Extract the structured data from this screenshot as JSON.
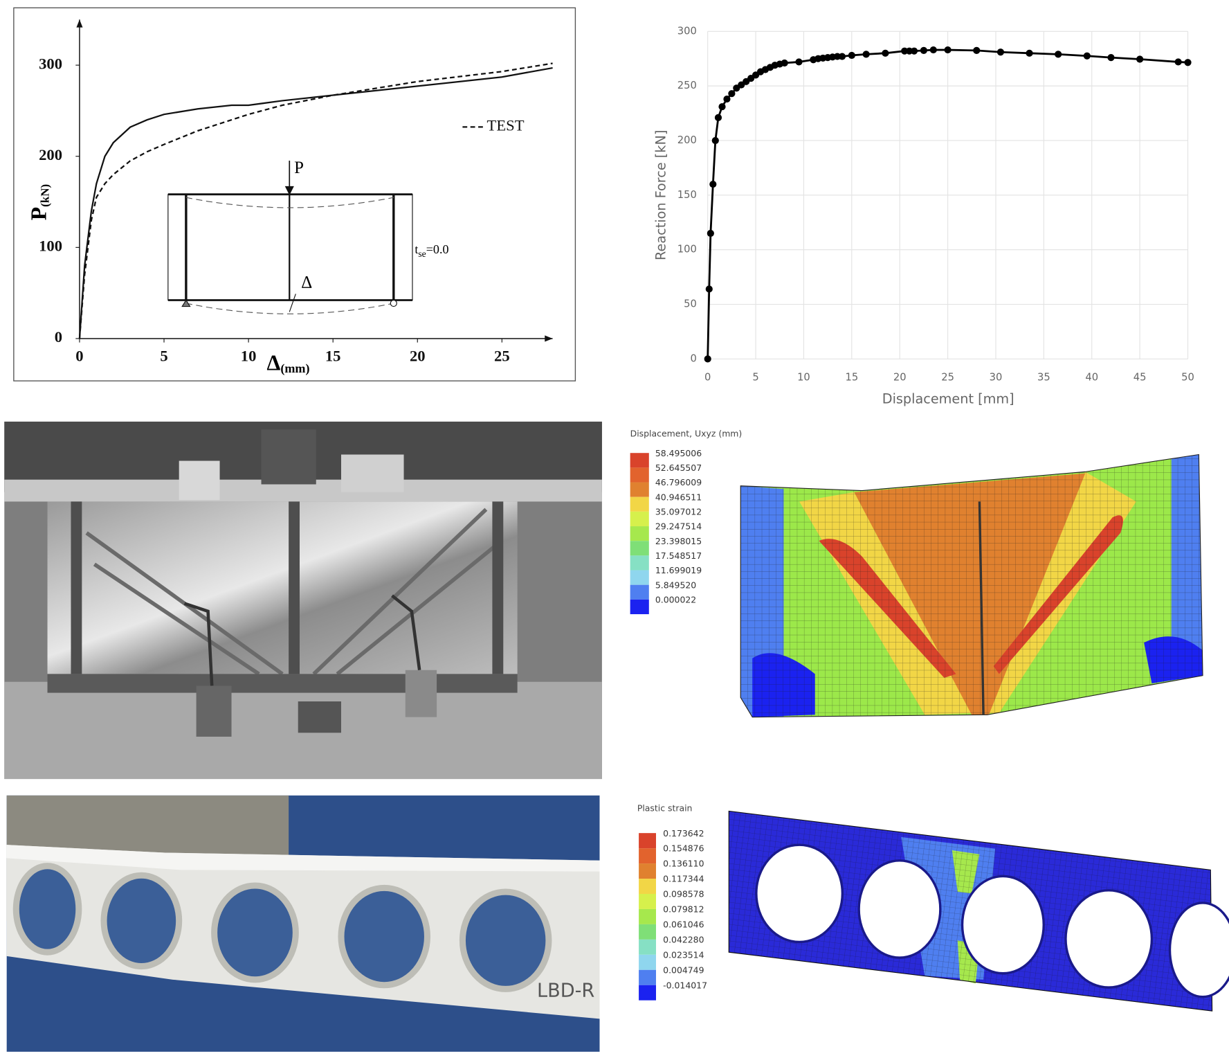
{
  "chart_data": [
    {
      "type": "line",
      "xlabel": {
        "main": "Δ",
        "sub": "(mm)"
      },
      "ylabel": {
        "main": "P",
        "sub": "(kN)"
      },
      "annotations": {
        "load": "P",
        "deflection": "Δ",
        "thickness": {
          "main": "t",
          "sub": "se",
          "rest": "=0.0"
        }
      },
      "x": [
        0,
        0.3,
        0.7,
        1,
        1.5,
        2,
        3,
        4,
        5,
        7,
        9,
        10,
        12,
        15,
        20,
        25,
        28
      ],
      "series": [
        {
          "style": "solid",
          "color": "#111111",
          "values": [
            0,
            80,
            140,
            170,
            200,
            215,
            232,
            240,
            246,
            252,
            256,
            256,
            261,
            267,
            277,
            287,
            297
          ]
        },
        {
          "name": "TEST",
          "style": "dashed",
          "color": "#111111",
          "values": [
            0,
            70,
            130,
            155,
            170,
            180,
            195,
            205,
            213,
            228,
            240,
            246,
            256,
            267,
            282,
            293,
            302
          ]
        }
      ],
      "xlim": [
        0,
        28
      ],
      "ylim": [
        0,
        350
      ],
      "xticks": [
        0,
        5,
        10,
        15,
        20,
        25
      ],
      "yticks": [
        0,
        100,
        200,
        300
      ],
      "grid": false
    },
    {
      "type": "line",
      "xlabel": "Displacement [mm]",
      "ylabel": "Reaction Force [kN]",
      "x": [
        0,
        0.15,
        0.3,
        0.55,
        0.8,
        1.1,
        1.5,
        2,
        2.5,
        3,
        3.5,
        4,
        4.5,
        5,
        5.5,
        6,
        6.5,
        7,
        7.5,
        8,
        9.5,
        11,
        11.5,
        12,
        12.5,
        13,
        13.5,
        14,
        15,
        16.5,
        18.5,
        20.5,
        21,
        21.5,
        22.5,
        23.5,
        25,
        28,
        30.5,
        33.5,
        36.5,
        39.5,
        42,
        45,
        49,
        50
      ],
      "series": [
        {
          "color": "#000000",
          "markers": true,
          "values": [
            0,
            64,
            115,
            160,
            200,
            221,
            231,
            238,
            243,
            248,
            251,
            254,
            257,
            260,
            263,
            265,
            267,
            269,
            270,
            271,
            272,
            274,
            275,
            275.5,
            276,
            276.5,
            277,
            277,
            278,
            279,
            280,
            282,
            282,
            282,
            282.5,
            283,
            283,
            282.5,
            281,
            280,
            279,
            277.5,
            276,
            274.5,
            272,
            271.5
          ]
        }
      ],
      "xlim": [
        0,
        50
      ],
      "ylim": [
        0,
        300
      ],
      "xticks": [
        0,
        5,
        10,
        15,
        20,
        25,
        30,
        35,
        40,
        45,
        50
      ],
      "yticks": [
        0,
        50,
        100,
        150,
        200,
        250,
        300
      ],
      "grid": true
    }
  ],
  "contour_plots": [
    {
      "title": "Displacement, Uxyz (mm)",
      "levels": [
        "58.495006",
        "52.645507",
        "46.796009",
        "40.946511",
        "35.097012",
        "29.247514",
        "23.398015",
        "17.548517",
        "11.699019",
        "5.849520",
        "0.000022"
      ],
      "colors": [
        "#d9432b",
        "#e2632d",
        "#e0812f",
        "#f2d646",
        "#d6f04c",
        "#a6e84d",
        "#7fdf77",
        "#86e0c4",
        "#8fd6ee",
        "#4f7ff0",
        "#1b22f0"
      ]
    },
    {
      "title": "Plastic strain",
      "levels": [
        "0.173642",
        "0.154876",
        "0.136110",
        "0.117344",
        "0.098578",
        "0.079812",
        "0.061046",
        "0.042280",
        "0.023514",
        "0.004749",
        "-0.014017"
      ],
      "colors": [
        "#d9432b",
        "#e2632d",
        "#e0812f",
        "#f2d646",
        "#d6f04c",
        "#a6e84d",
        "#7fdf77",
        "#86e0c4",
        "#8fd6ee",
        "#4f7ff0",
        "#1b22f0"
      ]
    }
  ],
  "photos": {
    "beam_marking": "LBD-R"
  }
}
